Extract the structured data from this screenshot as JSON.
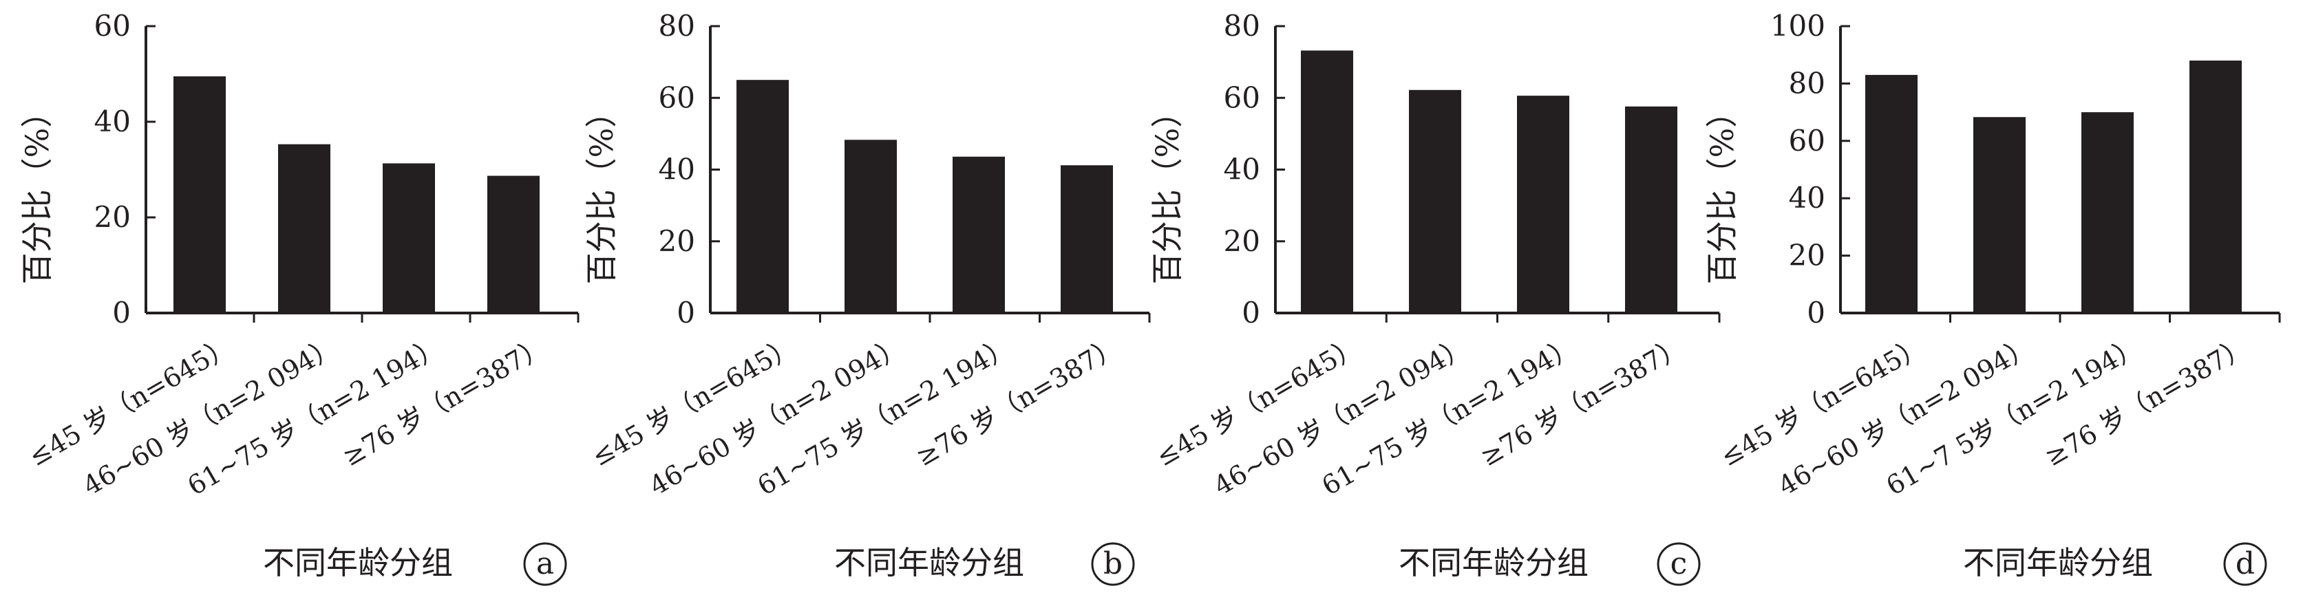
{
  "chart_data": [
    {
      "type": "bar",
      "categories": [
        "≤45 岁（n=645）",
        "46~60 岁（n=2 094）",
        "61~75 岁（n=2 194）",
        "≥76 岁（n=387）"
      ],
      "values": [
        49.5,
        35.3,
        31.3,
        28.7
      ],
      "xlabel": "不同年龄分组",
      "ylabel": "百分比（%）",
      "ylim": [
        0,
        60
      ],
      "yticks": [
        "0",
        "20",
        "40",
        "60"
      ],
      "panel": "a",
      "grid": false,
      "color": "#231f20"
    },
    {
      "type": "bar",
      "categories": [
        "≤45 岁（n=645）",
        "46~60 岁（n=2 094）",
        "61~75 岁（n=2 194）",
        "≥76 岁（n=387）"
      ],
      "values": [
        65.0,
        48.3,
        43.6,
        41.2
      ],
      "xlabel": "不同年龄分组",
      "ylabel": "百分比（%）",
      "ylim": [
        0,
        80
      ],
      "yticks": [
        "0",
        "20",
        "40",
        "60",
        "80"
      ],
      "panel": "b",
      "grid": false,
      "color": "#231f20"
    },
    {
      "type": "bar",
      "categories": [
        "≤45 岁（n=645）",
        "46~60 岁（n=2 094）",
        "61~75 岁（n=2 194）",
        "≥76 岁（n=387）"
      ],
      "values": [
        73.2,
        62.2,
        60.6,
        57.6
      ],
      "xlabel": "不同年龄分组",
      "ylabel": "百分比（%）",
      "ylim": [
        0,
        80
      ],
      "yticks": [
        "0",
        "20",
        "40",
        "60",
        "80"
      ],
      "panel": "c",
      "grid": false,
      "color": "#231f20"
    },
    {
      "type": "bar",
      "categories": [
        "≤45 岁（n=645）",
        "46~60 岁（n=2 094）",
        "61~7 5岁（n=2 194）",
        "≥76 岁（n=387）"
      ],
      "values": [
        83.0,
        68.3,
        70.0,
        88.0
      ],
      "xlabel": "不同年龄分组",
      "ylabel": "百分比（%）",
      "ylim": [
        0,
        100
      ],
      "yticks": [
        "0",
        "20",
        "40",
        "60",
        "80",
        "100"
      ],
      "panel": "d",
      "grid": false,
      "color": "#231f20"
    }
  ]
}
